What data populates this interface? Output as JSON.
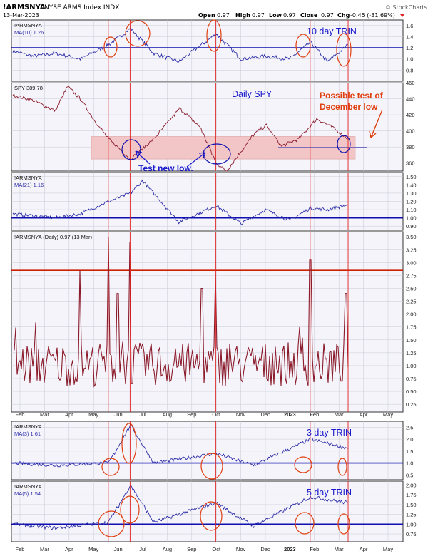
{
  "header": {
    "symbol": "!ARMSNYA",
    "description": "NYSE ARMS Index  INDX",
    "date": "13-Mar-2023",
    "open_label": "Open",
    "open": "0.97",
    "high_label": "High",
    "high": "0.97",
    "low_label": "Low",
    "low": "0.97",
    "close_label": "Close",
    "close": "0.97",
    "chg_label": "Chg",
    "chg": "-0.45 (-31.69%)",
    "copyright": "© StockCharts.com"
  },
  "colors": {
    "price_line": "#8b1a2a",
    "ma_line": "#2d2da8",
    "threshold_line": "#1010b0",
    "spike_threshold": "#cc2200",
    "marker_vline": "#e02020",
    "annotation_blue": "#1a1acc",
    "annotation_red": "#e04010",
    "support_band": "#f2c6c6",
    "grid": "#c9c9d6",
    "panel_bg": "#f4f4fa"
  },
  "panels": [
    {
      "legend": [
        "!ARMSNYA",
        "MA(10) 1.26"
      ],
      "ticks": [
        "1.6",
        "1.4",
        "1.2",
        "1.0",
        "0.8"
      ],
      "annotation": "10 day TRIN"
    },
    {
      "legend": [
        "SPY 389.78"
      ],
      "ticks": [
        "460",
        "440",
        "420",
        "400",
        "380",
        "360"
      ],
      "annotation": "Daily SPY",
      "note_1": "Possible test of",
      "note_2": "December low",
      "note_3": "Test new low."
    },
    {
      "legend": [
        "!ARMSNYA",
        "MA(21) 1.16"
      ],
      "ticks": [
        "1.50",
        "1.40",
        "1.30",
        "1.20",
        "1.10",
        "1.00",
        "0.90"
      ]
    },
    {
      "legend": [
        "!ARMSNYA (Daily) 0.97 (13 Mar)"
      ],
      "ticks": [
        "3.50",
        "3.25",
        "3.00",
        "2.75",
        "2.50",
        "2.25",
        "2.00",
        "1.75",
        "1.50",
        "1.25",
        "1.00",
        "0.75",
        "0.50",
        "0.25"
      ]
    },
    {
      "legend": [
        "!ARMSNYA",
        "MA(3) 1.61"
      ],
      "ticks": [
        "2.5",
        "2.0",
        "1.5",
        "1.0",
        "0.5"
      ],
      "annotation": "3 day TRIN"
    },
    {
      "legend": [
        "!ARMSNYA",
        "MA(5) 1.54"
      ],
      "ticks": [
        "2.00",
        "1.75",
        "1.50",
        "1.25",
        "1.00",
        "0.75"
      ],
      "annotation": "5 day TRIN"
    }
  ],
  "x_axis_labels": [
    "Feb",
    "Mar",
    "Apr",
    "May",
    "Jun",
    "Jul",
    "Aug",
    "Sep",
    "Oct",
    "Nov",
    "Dec",
    "2023",
    "Feb",
    "Mar",
    "Apr",
    "May"
  ],
  "chart_data": {
    "type": "line",
    "title": "!ARMSNYA NYSE ARMS Index INDX",
    "x_range": [
      "2022-01-20",
      "2023-05-20"
    ],
    "marker_dates": [
      "2022-05-20",
      "2022-06-16",
      "2022-09-30",
      "2023-01-25",
      "2023-03-13"
    ],
    "series": [
      {
        "name": "MA(10)",
        "panel": 0,
        "ylim": [
          0.6,
          1.7
        ],
        "threshold": 1.2,
        "x": [
          "2022-01-20",
          "2022-02-15",
          "2022-03-15",
          "2022-04-15",
          "2022-05-20",
          "2022-06-16",
          "2022-07-15",
          "2022-08-15",
          "2022-09-30",
          "2022-10-31",
          "2022-11-30",
          "2022-12-30",
          "2023-01-25",
          "2023-02-15",
          "2023-03-13"
        ],
        "y": [
          1.15,
          1.05,
          1.1,
          1.0,
          1.25,
          1.55,
          1.1,
          0.95,
          1.45,
          1.0,
          1.05,
          1.0,
          1.3,
          0.95,
          1.26
        ]
      },
      {
        "name": "SPY",
        "panel": 1,
        "ylim": [
          350,
          460
        ],
        "support": [
          365,
          393
        ],
        "december_low": 379,
        "x": [
          "2022-01-20",
          "2022-02-15",
          "2022-03-15",
          "2022-03-30",
          "2022-04-15",
          "2022-05-01",
          "2022-05-20",
          "2022-06-16",
          "2022-07-15",
          "2022-08-16",
          "2022-09-10",
          "2022-09-30",
          "2022-10-13",
          "2022-11-15",
          "2022-12-01",
          "2022-12-20",
          "2023-01-10",
          "2023-02-02",
          "2023-02-20",
          "2023-03-13"
        ],
        "y": [
          445,
          438,
          425,
          455,
          440,
          415,
          390,
          365,
          390,
          428,
          405,
          360,
          350,
          395,
          407,
          381,
          390,
          415,
          405,
          389.78
        ]
      },
      {
        "name": "MA(21)",
        "panel": 2,
        "ylim": [
          0.85,
          1.55
        ],
        "threshold": 1.0,
        "x": [
          "2022-01-20",
          "2022-03-15",
          "2022-04-15",
          "2022-05-20",
          "2022-06-16",
          "2022-07-01",
          "2022-08-15",
          "2022-09-30",
          "2022-10-31",
          "2022-11-30",
          "2022-12-30",
          "2023-01-25",
          "2023-02-15",
          "2023-03-13"
        ],
        "y": [
          1.05,
          1.0,
          1.05,
          1.2,
          1.3,
          1.45,
          0.95,
          1.15,
          0.93,
          1.1,
          0.97,
          1.12,
          1.1,
          1.16
        ]
      },
      {
        "name": "ARMSNYA Daily",
        "panel": 3,
        "ylim": [
          0.1,
          3.6
        ],
        "threshold": 2.85,
        "last": 0.97,
        "spikes": [
          [
            "2022-04-15",
            2.85
          ],
          [
            "2022-05-20",
            3.5
          ],
          [
            "2022-06-16",
            3.4
          ],
          [
            "2022-06-01",
            2.4
          ],
          [
            "2022-09-13",
            2.5
          ],
          [
            "2022-09-30",
            2.8
          ],
          [
            "2023-01-25",
            3.05
          ],
          [
            "2023-03-10",
            2.4
          ]
        ]
      },
      {
        "name": "MA(3)",
        "panel": 4,
        "ylim": [
          0.3,
          2.75
        ],
        "threshold": 1.0,
        "x": [
          "2022-01-20",
          "2022-03-15",
          "2022-05-20",
          "2022-06-16",
          "2022-07-15",
          "2022-09-30",
          "2022-11-15",
          "2023-01-25",
          "2023-03-13"
        ],
        "y": [
          1.0,
          0.9,
          1.0,
          2.6,
          1.0,
          1.4,
          0.9,
          2.0,
          1.61
        ]
      },
      {
        "name": "MA(5)",
        "panel": 5,
        "ylim": [
          0.55,
          2.1
        ],
        "threshold": 1.0,
        "x": [
          "2022-01-20",
          "2022-03-15",
          "2022-05-20",
          "2022-06-16",
          "2022-07-15",
          "2022-09-30",
          "2022-11-15",
          "2023-01-25",
          "2023-03-13"
        ],
        "y": [
          1.0,
          0.9,
          1.05,
          2.0,
          1.05,
          1.55,
          0.95,
          1.7,
          1.54
        ]
      }
    ]
  }
}
